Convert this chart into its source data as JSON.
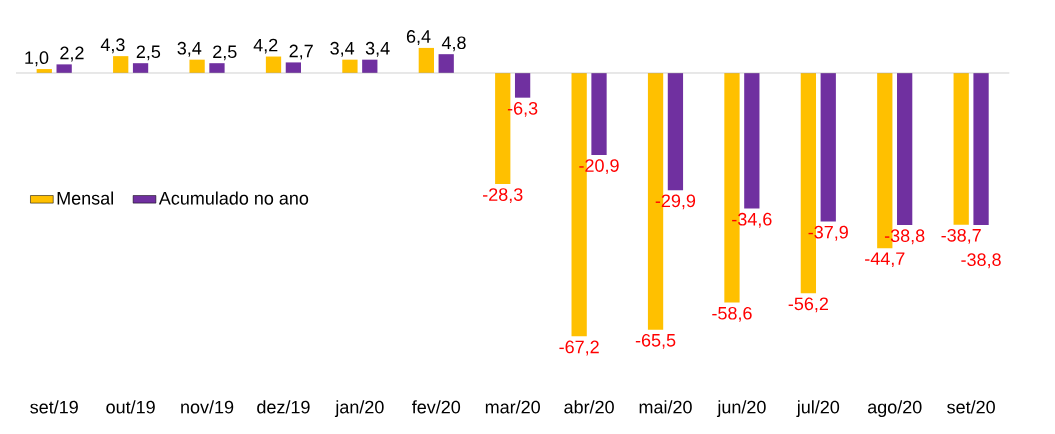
{
  "chart_data": {
    "type": "bar",
    "categories": [
      "set/19",
      "out/19",
      "nov/19",
      "dez/19",
      "jan/20",
      "fev/20",
      "mar/20",
      "abr/20",
      "mai/20",
      "jun/20",
      "jul/20",
      "ago/20",
      "set/20"
    ],
    "series": [
      {
        "name": "Mensal",
        "color": "#ffc000",
        "values": [
          1.0,
          4.3,
          3.4,
          4.2,
          3.4,
          6.4,
          -28.3,
          -67.2,
          -65.5,
          -58.6,
          -56.2,
          -44.7,
          -38.7
        ],
        "value_labels": [
          "1,0",
          "4,3",
          "3,4",
          "4,2",
          "3,4",
          "6,4",
          "-28,3",
          "-67,2",
          "-65,5",
          "-58,6",
          "-56,2",
          "-44,7",
          "-38,7"
        ]
      },
      {
        "name": "Acumulado no ano",
        "color": "#7030a0",
        "values": [
          2.2,
          2.5,
          2.5,
          2.7,
          3.4,
          4.8,
          -6.3,
          -20.9,
          -29.9,
          -34.6,
          -37.9,
          -38.8,
          -38.8
        ],
        "value_labels": [
          "2,2",
          "2,5",
          "2,5",
          "2,7",
          "3,4",
          "4,8",
          "-6,3",
          "-20,9",
          "-29,9",
          "-34,6",
          "-37,9",
          "-38,8",
          "-38,8"
        ]
      }
    ],
    "legend": "left"
  }
}
